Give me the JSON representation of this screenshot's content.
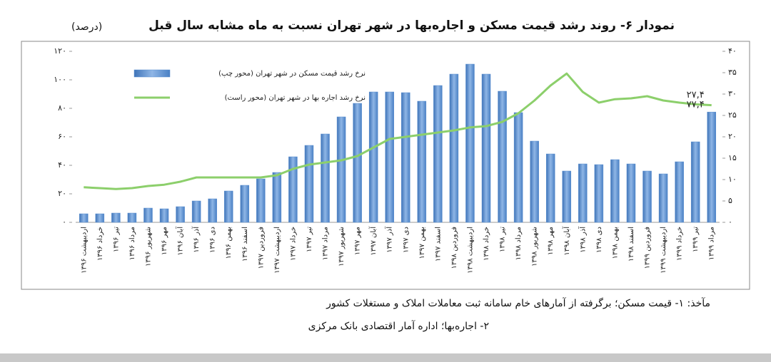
{
  "chart_data": {
    "type": "bar-line",
    "title": "نمودار ۶- روند رشد قیمت مسکن و اجاره‌بها در شهر تهران نسبت به ماه مشابه سال قبل",
    "unit_label": "(درصد)",
    "categories": [
      "اردیبهشت ۱۳۹۶",
      "خرداد ۱۳۹۶",
      "تیر ۱۳۹۶",
      "مرداد ۱۳۹۶",
      "شهریور ۱۳۹۶",
      "مهر ۱۳۹۶",
      "آبان ۱۳۹۶",
      "آذر ۱۳۹۶",
      "دی ۱۳۹۶",
      "بهمن ۱۳۹۶",
      "اسفند ۱۳۹۶",
      "فروردین ۱۳۹۷",
      "اردیبهشت ۱۳۹۷",
      "خرداد ۱۳۹۷",
      "تیر ۱۳۹۷",
      "مرداد ۱۳۹۷",
      "شهریور ۱۳۹۷",
      "مهر ۱۳۹۷",
      "آبان ۱۳۹۷",
      "آذر ۱۳۹۷",
      "دی ۱۳۹۷",
      "بهمن ۱۳۹۷",
      "اسفند ۱۳۹۷",
      "فروردین ۱۳۹۸",
      "اردیبهشت ۱۳۹۸",
      "خرداد ۱۳۹۸",
      "تیر ۱۳۹۸",
      "مرداد ۱۳۹۸",
      "شهریور ۱۳۹۸",
      "مهر ۱۳۹۸",
      "آبان ۱۳۹۸",
      "آذر ۱۳۹۸",
      "دی ۱۳۹۸",
      "بهمن ۱۳۹۸",
      "اسفند ۱۳۹۸",
      "فروردین ۱۳۹۹",
      "اردیبهشت ۱۳۹۹",
      "خرداد ۱۳۹۹",
      "تیر ۱۳۹۹",
      "مرداد ۱۳۹۹"
    ],
    "series": [
      {
        "name": "نرخ رشد قیمت مسکن در شهر تهران (محور چپ)",
        "type": "bar",
        "color": "#5b8fd0",
        "values": [
          6,
          6,
          6.5,
          6.5,
          10,
          9.5,
          11,
          15,
          16.5,
          22,
          26,
          30.5,
          35,
          46,
          54,
          62,
          74,
          83.5,
          91.5,
          91.5,
          91,
          85,
          96,
          104,
          111,
          104,
          92,
          77,
          57,
          48,
          36,
          41,
          40.5,
          44,
          41,
          36,
          34,
          42.5,
          56.5,
          77.4
        ],
        "value_labels": [
          null,
          null,
          null,
          null,
          null,
          null,
          null,
          null,
          null,
          null,
          null,
          null,
          null,
          null,
          null,
          null,
          null,
          null,
          null,
          null,
          null,
          null,
          null,
          null,
          null,
          null,
          null,
          null,
          null,
          null,
          null,
          null,
          null,
          null,
          null,
          null,
          null,
          null,
          null,
          "۷۷,۴"
        ]
      },
      {
        "name": "نرخ رشد اجاره بها در شهر تهران (محور راست)",
        "type": "line",
        "axis": "y2",
        "color": "#8ccf6b",
        "values": [
          8.2,
          8,
          7.8,
          8,
          8.5,
          8.8,
          9.5,
          10.5,
          10.5,
          10.5,
          10.5,
          10.5,
          11,
          12.5,
          13.5,
          14,
          14.5,
          15.5,
          17.5,
          19.5,
          20,
          20.5,
          21,
          21.5,
          22.2,
          22.5,
          23.5,
          25.5,
          28.5,
          32,
          34.8,
          30.5,
          28,
          28.8,
          29,
          29.5,
          28.5,
          28,
          27.6,
          27.4
        ],
        "value_labels": [
          null,
          null,
          null,
          null,
          null,
          null,
          null,
          null,
          null,
          null,
          null,
          null,
          null,
          null,
          null,
          null,
          null,
          null,
          null,
          null,
          null,
          null,
          null,
          null,
          null,
          null,
          null,
          null,
          null,
          null,
          null,
          null,
          null,
          null,
          null,
          null,
          null,
          null,
          null,
          "۲۷,۴"
        ]
      }
    ],
    "ylim": [
      0,
      120
    ],
    "yticks": [
      {
        "value": 0,
        "label": "۰"
      },
      {
        "value": 20,
        "label": "۲۰"
      },
      {
        "value": 40,
        "label": "۴۰"
      },
      {
        "value": 60,
        "label": "۶۰"
      },
      {
        "value": 80,
        "label": "۸۰"
      },
      {
        "value": 100,
        "label": "۱۰۰"
      },
      {
        "value": 120,
        "label": "۱۲۰"
      }
    ],
    "y2lim": [
      0,
      40
    ],
    "y2ticks": [
      {
        "value": 0,
        "label": "۰"
      },
      {
        "value": 5,
        "label": "۵"
      },
      {
        "value": 10,
        "label": "۱۰"
      },
      {
        "value": 15,
        "label": "۱۵"
      },
      {
        "value": 20,
        "label": "۲۰"
      },
      {
        "value": 25,
        "label": "۲۵"
      },
      {
        "value": 30,
        "label": "۳۰"
      },
      {
        "value": 35,
        "label": "۳۵"
      },
      {
        "value": 40,
        "label": "۴۰"
      }
    ],
    "grid": false,
    "legend": "top-left",
    "notes": [
      "مآخذ: ۱- قیمت مسکن؛ برگرفته از آمارهای خام سامانه ثبت معاملات املاک و مستغلات کشور",
      "۲- اجاره‌بها؛ اداره آمار اقتصادی بانک مرکزی"
    ]
  }
}
